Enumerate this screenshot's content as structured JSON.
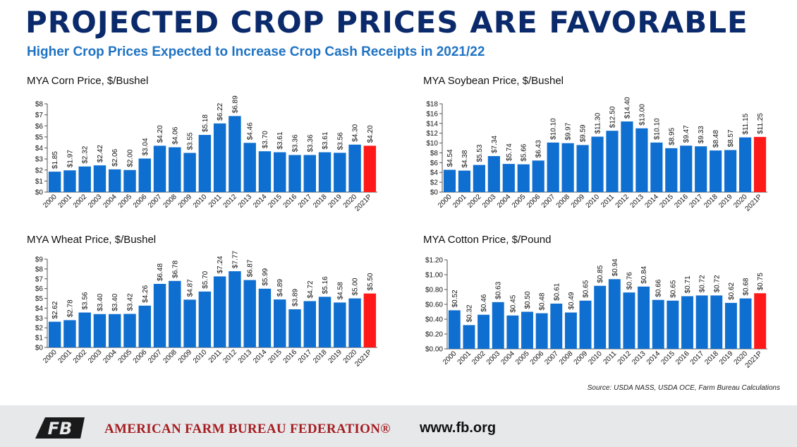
{
  "header": {
    "title": "PROJECTED CROP PRICES ARE FAVORABLE",
    "subtitle": "Higher Crop Prices Expected to Increase Crop Cash Receipts in 2021/22"
  },
  "colors": {
    "bar": "#0f6fd0",
    "highlight": "#ff1a1a",
    "title": "#0b2a6b",
    "subtitle": "#1f73c4",
    "org": "#a51d20"
  },
  "chart_data": [
    {
      "id": "corn",
      "type": "bar",
      "title": "MYA Corn Price, $/Bushel",
      "categories": [
        "2000",
        "2001",
        "2002",
        "2003",
        "2004",
        "2005",
        "2006",
        "2007",
        "2008",
        "2009",
        "2010",
        "2011",
        "2012",
        "2013",
        "2014",
        "2015",
        "2016",
        "2017",
        "2018",
        "2019",
        "2020",
        "2021P"
      ],
      "values": [
        1.85,
        1.97,
        2.32,
        2.42,
        2.06,
        2.0,
        3.04,
        4.2,
        4.06,
        3.55,
        5.18,
        6.22,
        6.89,
        4.46,
        3.7,
        3.61,
        3.36,
        3.36,
        3.61,
        3.56,
        4.3,
        4.2
      ],
      "value_labels": [
        "$1.85",
        "$1.97",
        "$2.32",
        "$2.42",
        "$2.06",
        "$2.00",
        "$3.04",
        "$4.20",
        "$4.06",
        "$3.55",
        "$5.18",
        "$6.22",
        "$6.89",
        "$4.46",
        "$3.70",
        "$3.61",
        "$3.36",
        "$3.36",
        "$3.61",
        "$3.56",
        "$4.30",
        "$4.20"
      ],
      "ylim": [
        0,
        8
      ],
      "yticks": [
        "$0",
        "$1",
        "$2",
        "$3",
        "$4",
        "$5",
        "$6",
        "$7",
        "$8"
      ],
      "highlight_last": true,
      "grid": false
    },
    {
      "id": "soybean",
      "type": "bar",
      "title": "MYA Soybean Price, $/Bushel",
      "categories": [
        "2000",
        "2001",
        "2002",
        "2003",
        "2004",
        "2005",
        "2006",
        "2007",
        "2008",
        "2009",
        "2010",
        "2011",
        "2012",
        "2013",
        "2014",
        "2015",
        "2016",
        "2017",
        "2018",
        "2019",
        "2020",
        "2021P"
      ],
      "values": [
        4.54,
        4.38,
        5.53,
        7.34,
        5.74,
        5.66,
        6.43,
        10.1,
        9.97,
        9.59,
        11.3,
        12.5,
        14.4,
        13.0,
        10.1,
        8.95,
        9.47,
        9.33,
        8.48,
        8.57,
        11.15,
        11.25
      ],
      "value_labels": [
        "$4.54",
        "$4.38",
        "$5.53",
        "$7.34",
        "$5.74",
        "$5.66",
        "$6.43",
        "$10.10",
        "$9.97",
        "$9.59",
        "$11.30",
        "$12.50",
        "$14.40",
        "$13.00",
        "$10.10",
        "$8.95",
        "$9.47",
        "$9.33",
        "$8.48",
        "$8.57",
        "$11.15",
        "$11.25"
      ],
      "ylim": [
        0,
        18
      ],
      "yticks": [
        "$0",
        "$2",
        "$4",
        "$6",
        "$8",
        "$10",
        "$12",
        "$14",
        "$16",
        "$18"
      ],
      "highlight_last": true,
      "grid": false
    },
    {
      "id": "wheat",
      "type": "bar",
      "title": "MYA Wheat Price, $/Bushel",
      "categories": [
        "2000",
        "2001",
        "2002",
        "2003",
        "2004",
        "2005",
        "2006",
        "2007",
        "2008",
        "2009",
        "2010",
        "2011",
        "2012",
        "2013",
        "2014",
        "2015",
        "2016",
        "2017",
        "2018",
        "2019",
        "2020",
        "2021P"
      ],
      "values": [
        2.62,
        2.78,
        3.56,
        3.4,
        3.4,
        3.42,
        4.26,
        6.48,
        6.78,
        4.87,
        5.7,
        7.24,
        7.77,
        6.87,
        5.99,
        4.89,
        3.89,
        4.72,
        5.16,
        4.58,
        5.0,
        5.5
      ],
      "value_labels": [
        "$2.62",
        "$2.78",
        "$3.56",
        "$3.40",
        "$3.40",
        "$3.42",
        "$4.26",
        "$6.48",
        "$6.78",
        "$4.87",
        "$5.70",
        "$7.24",
        "$7.77",
        "$6.87",
        "$5.99",
        "$4.89",
        "$3.89",
        "$4.72",
        "$5.16",
        "$4.58",
        "$5.00",
        "$5.50"
      ],
      "ylim": [
        0,
        9
      ],
      "yticks": [
        "$0",
        "$1",
        "$2",
        "$3",
        "$4",
        "$5",
        "$6",
        "$7",
        "$8",
        "$9"
      ],
      "highlight_last": true,
      "grid": false
    },
    {
      "id": "cotton",
      "type": "bar",
      "title": "MYA Cotton Price, $/Pound",
      "categories": [
        "2000",
        "2001",
        "2002",
        "2003",
        "2004",
        "2005",
        "2006",
        "2007",
        "2008",
        "2009",
        "2010",
        "2011",
        "2012",
        "2013",
        "2014",
        "2015",
        "2016",
        "2017",
        "2018",
        "2019",
        "2020",
        "2021P"
      ],
      "values": [
        0.52,
        0.32,
        0.46,
        0.63,
        0.45,
        0.5,
        0.48,
        0.61,
        0.49,
        0.65,
        0.85,
        0.94,
        0.76,
        0.84,
        0.66,
        0.65,
        0.71,
        0.72,
        0.72,
        0.62,
        0.68,
        0.75
      ],
      "value_labels": [
        "$0.52",
        "$0.32",
        "$0.46",
        "$0.63",
        "$0.45",
        "$0.50",
        "$0.48",
        "$0.61",
        "$0.49",
        "$0.65",
        "$0.85",
        "$0.94",
        "$0.76",
        "$0.84",
        "$0.66",
        "$0.65",
        "$0.71",
        "$0.72",
        "$0.72",
        "$0.62",
        "$0.68",
        "$0.75"
      ],
      "ylim": [
        0,
        1.2
      ],
      "yticks": [
        "$0.00",
        "$0.20",
        "$0.40",
        "$0.60",
        "$0.80",
        "$1.00",
        "$1.20"
      ],
      "highlight_last": true,
      "grid": false
    }
  ],
  "source": "Source: USDA NASS, USDA OCE, Farm Bureau Calculations",
  "footer": {
    "logo_text": "FB",
    "org_name": "AMERICAN FARM BUREAU FEDERATION®",
    "website": "www.fb.org"
  }
}
